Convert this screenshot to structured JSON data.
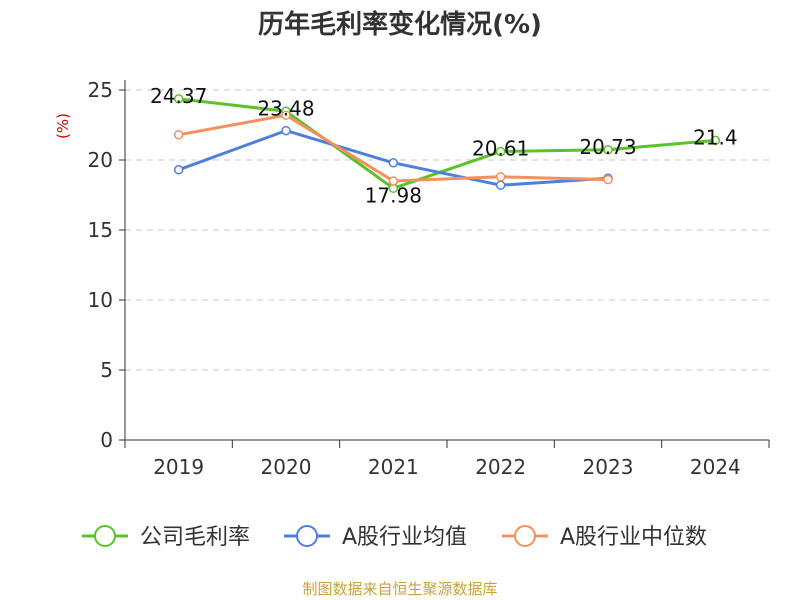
{
  "chart_data": {
    "type": "line",
    "title": "历年毛利率变化情况(%)",
    "unit_label": "(%)",
    "categories": [
      "2019",
      "2020",
      "2021",
      "2022",
      "2023",
      "2024"
    ],
    "y_ticks": [
      "0",
      "5",
      "10",
      "15",
      "20",
      "25"
    ],
    "ylim": [
      0,
      25
    ],
    "grid": true,
    "legend_position": "bottom",
    "series": [
      {
        "name": "公司毛利率",
        "color": "#5cc22a",
        "values": [
          24.37,
          23.48,
          17.98,
          20.61,
          20.73,
          21.4
        ],
        "labels": [
          "24.37",
          "23.48",
          "17.98",
          "20.61",
          "20.73",
          "21.4"
        ]
      },
      {
        "name": "A股行业均值",
        "color": "#4f7fd8",
        "values": [
          19.3,
          22.1,
          19.8,
          18.2,
          18.7,
          null
        ]
      },
      {
        "name": "A股行业中位数",
        "color": "#f39060",
        "values": [
          21.8,
          23.2,
          18.5,
          18.8,
          18.6,
          null
        ]
      }
    ],
    "source": "制图数据来自恒生聚源数据库"
  }
}
